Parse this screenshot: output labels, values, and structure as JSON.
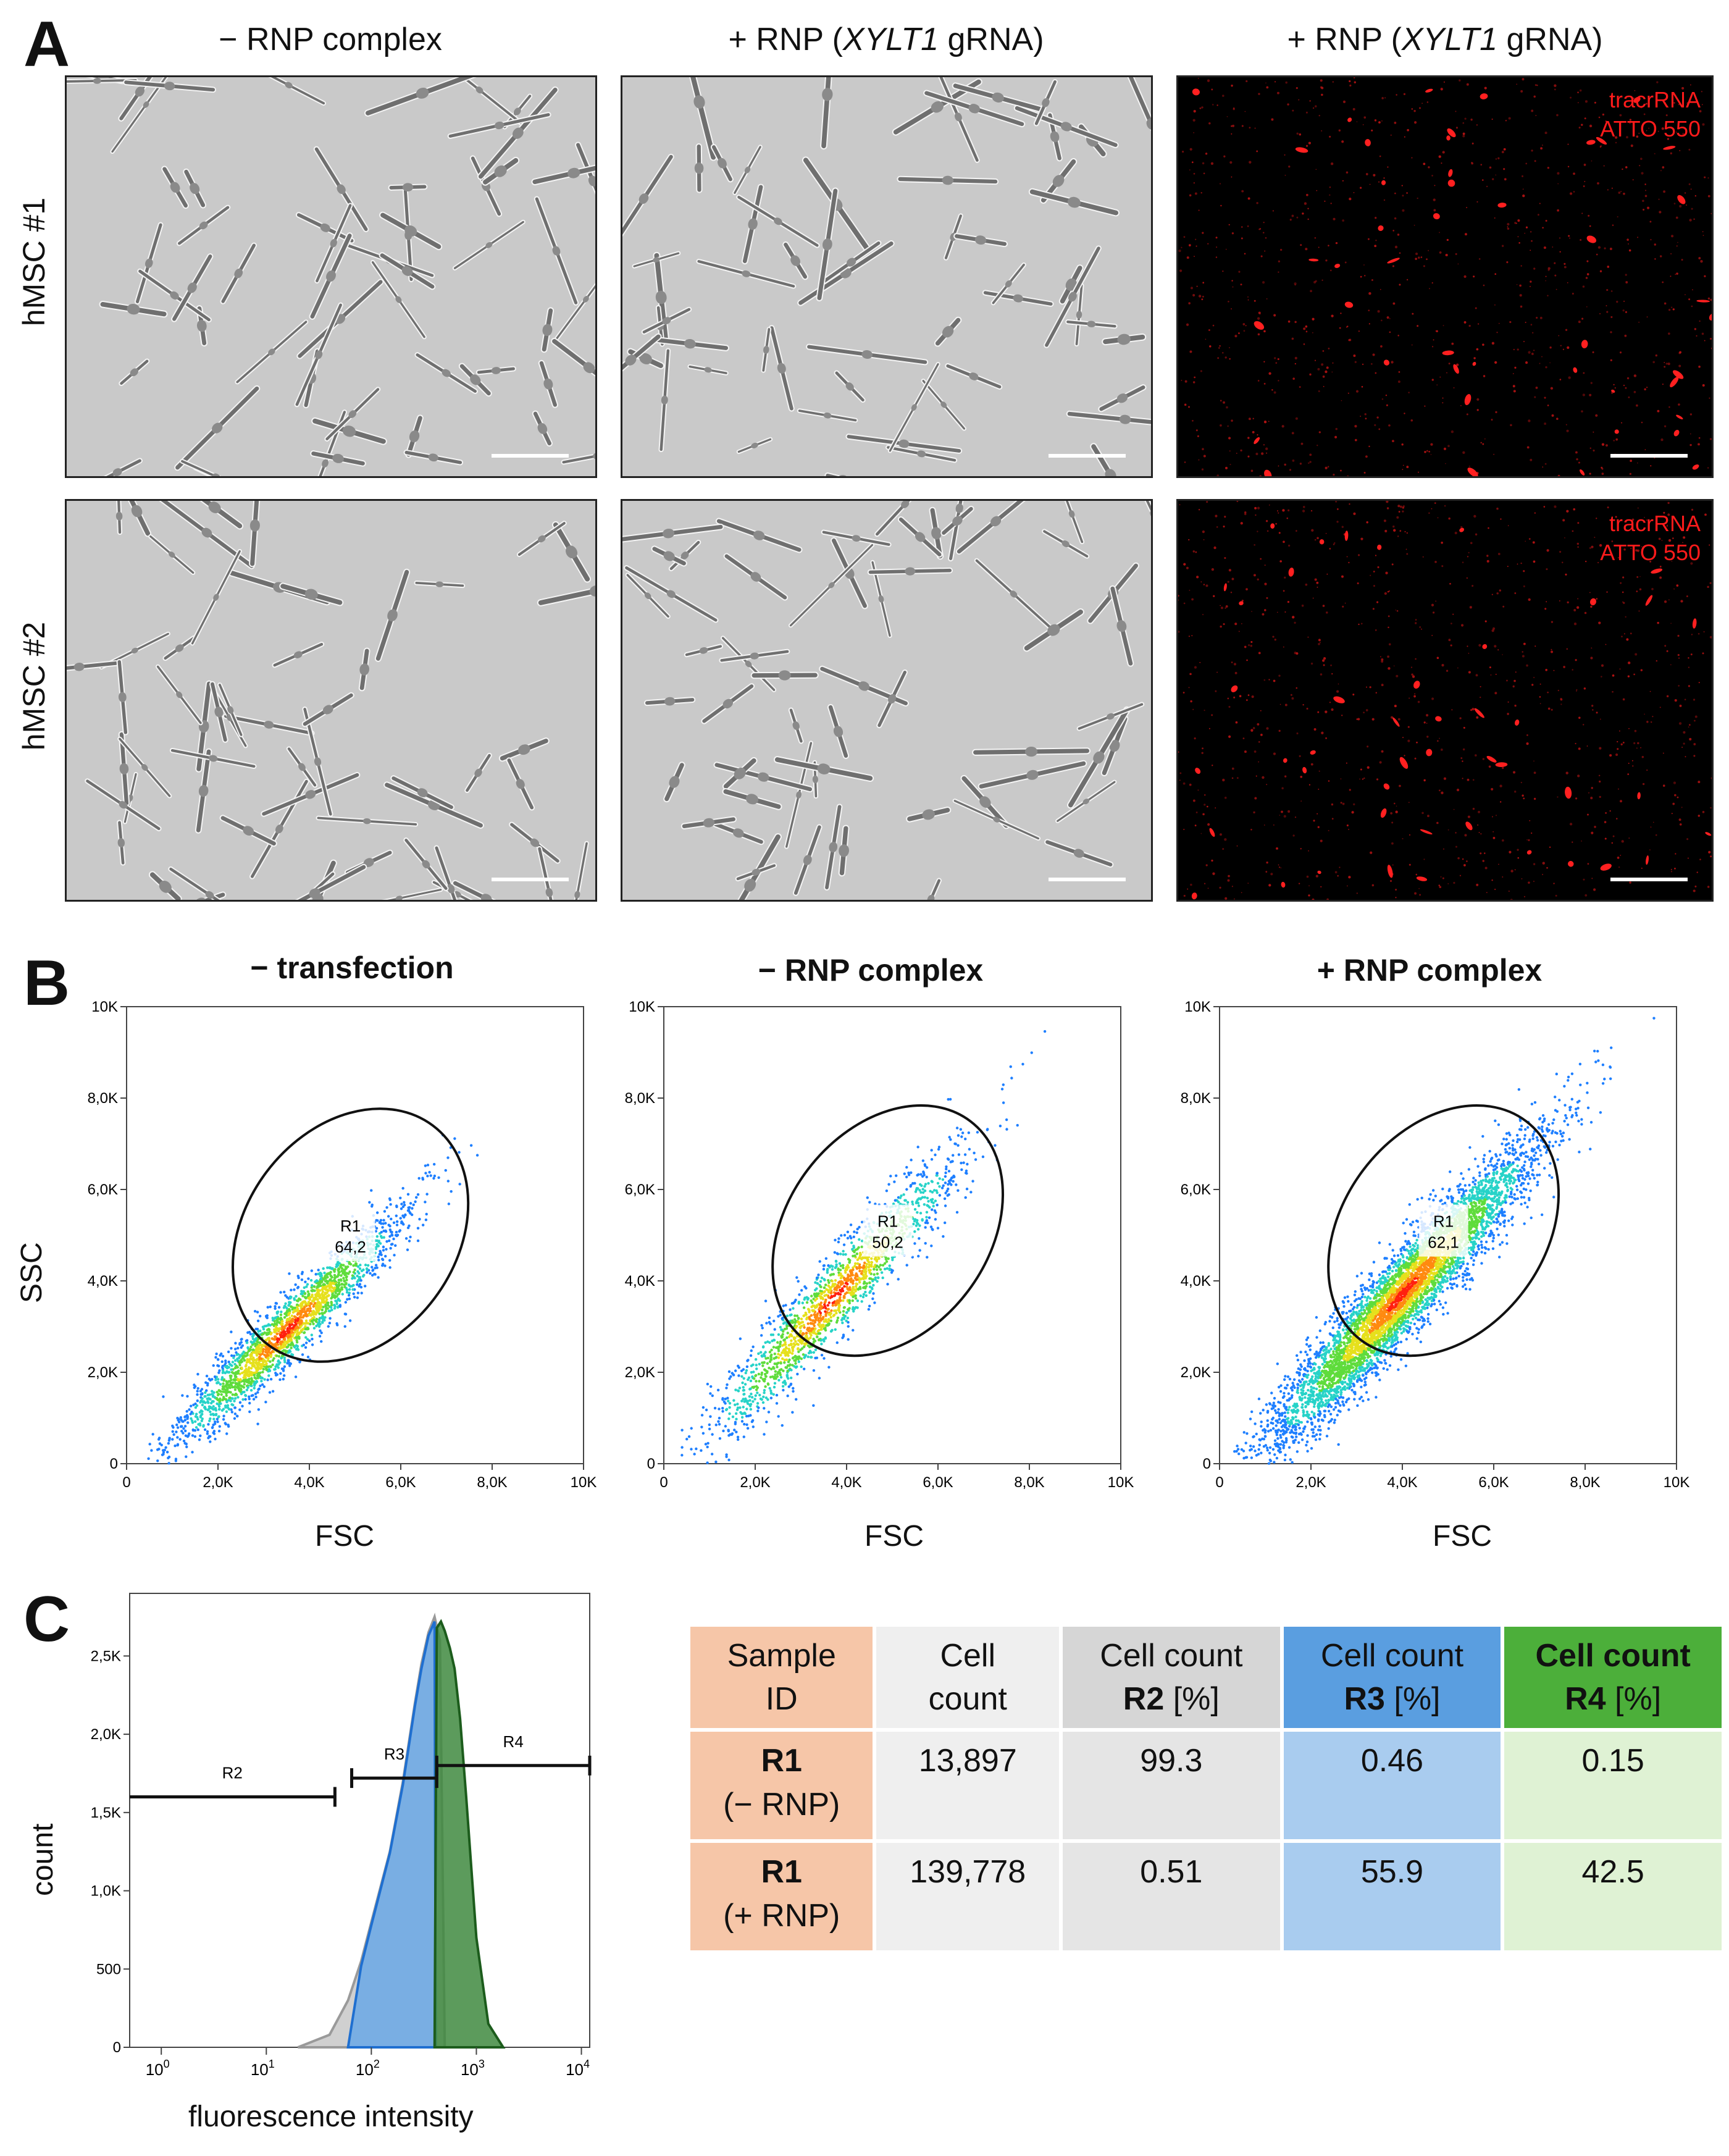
{
  "panel_a": {
    "letter": "A",
    "columns": [
      "− RNP complex",
      "+ RNP (XYLT1 gRNA)",
      "+ RNP (XYLT1 gRNA)"
    ],
    "rows": [
      "hMSC #1",
      "hMSC #2"
    ],
    "fluorescence_label_line1": "tracrRNA",
    "fluorescence_label_line2": "ATTO 550",
    "fluorescence_color": "#ff1b1b"
  },
  "panel_b": {
    "letter": "B",
    "y_title": "SSC",
    "x_title": "FSC"
  },
  "panel_c": {
    "letter": "C",
    "y_title": "count",
    "x_title": "fluorescence intensity",
    "table": {
      "headers": [
        {
          "line1": "Sample",
          "line2": "ID"
        },
        {
          "line1": "Cell",
          "line2": "count"
        },
        {
          "line1": "Cell count",
          "line2_bold": "R2",
          "line2_rest": " [%]"
        },
        {
          "line1": "Cell count",
          "line2_bold": "R3",
          "line2_rest": " [%]"
        },
        {
          "line1": "Cell count",
          "line2_bold": "R4",
          "line2_rest": " [%]"
        }
      ],
      "rows": [
        {
          "id": "R1",
          "sub": "(− RNP)",
          "count": "13,897",
          "r2": "99.3",
          "r3": "0.46",
          "r4": "0.15"
        },
        {
          "id": "R1",
          "sub": "(+ RNP)",
          "count": "139,778",
          "r2": "0.51",
          "r3": "55.9",
          "r4": "42.5"
        }
      ]
    }
  },
  "chart_data": [
    {
      "type": "scatter",
      "title": "− transfection",
      "xlabel": "FSC",
      "ylabel": "SSC",
      "xlim": [
        0,
        10000
      ],
      "ylim": [
        0,
        10000
      ],
      "x_ticks": [
        "0",
        "2,0K",
        "4,0K",
        "6,0K",
        "8,0K",
        "10K"
      ],
      "y_ticks": [
        "0",
        "2,0K",
        "4,0K",
        "6,0K",
        "8,0K",
        "10K"
      ],
      "gate": {
        "name": "R1",
        "value": "64,2",
        "center": [
          4900,
          5000
        ],
        "rx": 3000,
        "ry": 2300,
        "angle_deg": 53
      },
      "density_center": [
        3500,
        2900
      ],
      "density_spread": [
        1600,
        1500
      ],
      "n_points": 2200
    },
    {
      "type": "scatter",
      "title": "− RNP complex",
      "xlabel": "FSC",
      "ylabel": "SSC",
      "xlim": [
        0,
        10000
      ],
      "ylim": [
        0,
        10000
      ],
      "x_ticks": [
        "0",
        "2,0K",
        "4,0K",
        "6,0K",
        "8,0K",
        "10K"
      ],
      "y_ticks": [
        "0",
        "2,0K",
        "4,0K",
        "6,0K",
        "8,0K",
        "10K"
      ],
      "gate": {
        "name": "R1",
        "value": "50,2",
        "center": [
          4900,
          5100
        ],
        "rx": 3000,
        "ry": 2200,
        "angle_deg": 53
      },
      "density_center": [
        3700,
        3600
      ],
      "density_spread": [
        1800,
        1900
      ],
      "n_points": 1700
    },
    {
      "type": "scatter",
      "title": "+ RNP complex",
      "xlabel": "FSC",
      "ylabel": "SSC",
      "xlim": [
        0,
        10000
      ],
      "ylim": [
        0,
        10000
      ],
      "x_ticks": [
        "0",
        "2,0K",
        "4,0K",
        "6,0K",
        "8,0K",
        "10K"
      ],
      "y_ticks": [
        "0",
        "2,0K",
        "4,0K",
        "6,0K",
        "8,0K",
        "10K"
      ],
      "gate": {
        "name": "R1",
        "value": "62,1",
        "center": [
          4900,
          5100
        ],
        "rx": 3000,
        "ry": 2200,
        "angle_deg": 53
      },
      "density_center": [
        4000,
        3700
      ],
      "density_spread": [
        1900,
        2000
      ],
      "n_points": 5200
    },
    {
      "type": "area",
      "title": "",
      "xlabel": "fluorescence intensity",
      "ylabel": "count",
      "x_scale": "log",
      "xlim": [
        0.5,
        12000
      ],
      "ylim": [
        0,
        2900
      ],
      "y_ticks": [
        "0",
        "500",
        "1,0K",
        "1,5K",
        "2,0K",
        "2,5K"
      ],
      "x_ticks": [
        "10",
        "10",
        "10",
        "10",
        "10"
      ],
      "x_tick_exponents": [
        "0",
        "1",
        "2",
        "3",
        "4"
      ],
      "series": [
        {
          "name": "R2",
          "color": "#b8b8b8",
          "x": [
            20,
            40,
            60,
            80,
            100,
            150,
            200,
            260,
            300,
            350,
            400,
            450,
            500
          ],
          "y": [
            0,
            80,
            300,
            550,
            800,
            1250,
            1700,
            2200,
            2450,
            2650,
            2750,
            2600,
            0
          ]
        },
        {
          "name": "R3",
          "color": "#5a9ee0",
          "x": [
            60,
            80,
            100,
            150,
            200,
            260,
            300,
            350,
            400,
            410
          ],
          "y": [
            0,
            520,
            780,
            1240,
            1680,
            2180,
            2420,
            2630,
            2720,
            0
          ]
        },
        {
          "name": "R4",
          "color": "#4a8a46",
          "x": [
            400,
            420,
            460,
            500,
            560,
            620,
            700,
            800,
            1000,
            1300,
            1800
          ],
          "y": [
            0,
            2680,
            2720,
            2660,
            2550,
            2420,
            2100,
            1600,
            700,
            150,
            0
          ]
        }
      ],
      "gates": [
        {
          "name": "R2",
          "from": 0.5,
          "to": 45,
          "y": 1600
        },
        {
          "name": "R3",
          "from": 65,
          "to": 420,
          "y": 1720
        },
        {
          "name": "R4",
          "from": 420,
          "to": 12000,
          "y": 1800
        }
      ]
    }
  ]
}
